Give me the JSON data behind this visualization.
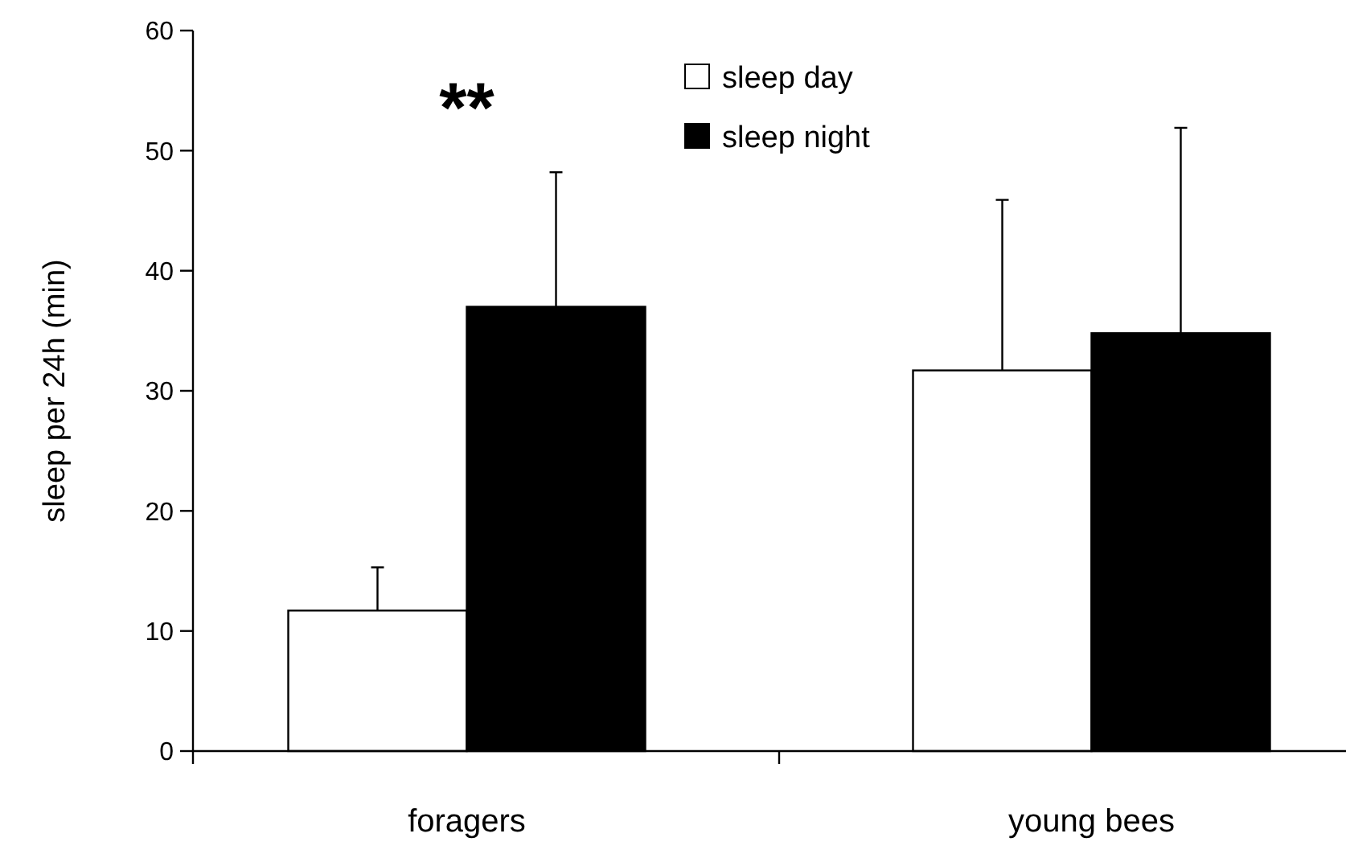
{
  "chart_data": {
    "type": "bar",
    "ylabel": "sleep per 24h  (min)",
    "categories": [
      "foragers",
      "young bees"
    ],
    "series": [
      {
        "name": "sleep day",
        "color": "#ffffff",
        "values": [
          11.7,
          31.7
        ],
        "errors": [
          [
            11.7,
            15.3
          ],
          [
            31.7,
            45.9
          ]
        ]
      },
      {
        "name": "sleep night",
        "color": "#000000",
        "values": [
          37.0,
          34.8
        ],
        "errors": [
          [
            37.0,
            48.2
          ],
          [
            34.8,
            51.9
          ]
        ]
      }
    ],
    "ylim": [
      0,
      60
    ],
    "yticks": [
      0,
      10,
      20,
      30,
      40,
      50,
      60
    ],
    "grid": false,
    "legend": "top",
    "annotations": [
      "**"
    ]
  }
}
